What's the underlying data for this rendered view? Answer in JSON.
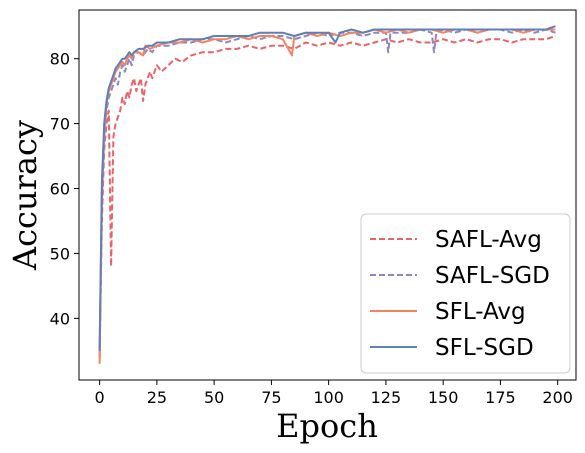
{
  "chart_data": {
    "type": "line",
    "xlabel": "Epoch",
    "ylabel": "Accuracy",
    "xlim": [
      -9,
      208
    ],
    "ylim": [
      30.5,
      87.5
    ],
    "x_ticks": [
      0,
      25,
      50,
      75,
      100,
      125,
      150,
      175,
      200
    ],
    "y_ticks": [
      40,
      50,
      60,
      70,
      80
    ],
    "grid": false,
    "legend_position": "lower-right",
    "series": [
      {
        "name": "SAFL-Avg",
        "color": "#e8636a",
        "style": "dashed",
        "points": [
          [
            0,
            34
          ],
          [
            1,
            55
          ],
          [
            2,
            66
          ],
          [
            3,
            70
          ],
          [
            4,
            72
          ],
          [
            5,
            48
          ],
          [
            6,
            68
          ],
          [
            7,
            70
          ],
          [
            8,
            71
          ],
          [
            9,
            72
          ],
          [
            10,
            74
          ],
          [
            11,
            73
          ],
          [
            12,
            75
          ],
          [
            13,
            74
          ],
          [
            14,
            76
          ],
          [
            15,
            77
          ],
          [
            16,
            75
          ],
          [
            17,
            76
          ],
          [
            18,
            77
          ],
          [
            19,
            73.5
          ],
          [
            20,
            76
          ],
          [
            21,
            77
          ],
          [
            22,
            78
          ],
          [
            23,
            77
          ],
          [
            24,
            78
          ],
          [
            25,
            79
          ],
          [
            27,
            78
          ],
          [
            30,
            79
          ],
          [
            33,
            80
          ],
          [
            36,
            79.5
          ],
          [
            40,
            80.5
          ],
          [
            45,
            81
          ],
          [
            50,
            81
          ],
          [
            55,
            81.5
          ],
          [
            60,
            81.5
          ],
          [
            65,
            82
          ],
          [
            70,
            81.5
          ],
          [
            75,
            82
          ],
          [
            80,
            82
          ],
          [
            85,
            81.5
          ],
          [
            90,
            82.5
          ],
          [
            95,
            82
          ],
          [
            100,
            82.5
          ],
          [
            105,
            82
          ],
          [
            110,
            82.5
          ],
          [
            115,
            82
          ],
          [
            120,
            82.5
          ],
          [
            125,
            83
          ],
          [
            130,
            82.5
          ],
          [
            135,
            83
          ],
          [
            140,
            82.5
          ],
          [
            145,
            82.5
          ],
          [
            150,
            83
          ],
          [
            155,
            82.5
          ],
          [
            160,
            83
          ],
          [
            165,
            82.5
          ],
          [
            170,
            83
          ],
          [
            175,
            83
          ],
          [
            180,
            82.5
          ],
          [
            185,
            83
          ],
          [
            190,
            83
          ],
          [
            195,
            83
          ],
          [
            199,
            83.5
          ]
        ]
      },
      {
        "name": "SAFL-SGD",
        "color": "#8b86c4",
        "style": "dashed",
        "points": [
          [
            0,
            35
          ],
          [
            1,
            58
          ],
          [
            2,
            68
          ],
          [
            3,
            72
          ],
          [
            4,
            74
          ],
          [
            5,
            75
          ],
          [
            6,
            76
          ],
          [
            7,
            77
          ],
          [
            8,
            76
          ],
          [
            9,
            78
          ],
          [
            10,
            79
          ],
          [
            11,
            78
          ],
          [
            12,
            79
          ],
          [
            13,
            80
          ],
          [
            14,
            79
          ],
          [
            15,
            80.5
          ],
          [
            17,
            81
          ],
          [
            19,
            80.5
          ],
          [
            21,
            81.5
          ],
          [
            23,
            81
          ],
          [
            25,
            82
          ],
          [
            30,
            82
          ],
          [
            35,
            82.5
          ],
          [
            40,
            82.5
          ],
          [
            45,
            83
          ],
          [
            50,
            83
          ],
          [
            55,
            82.5
          ],
          [
            60,
            83
          ],
          [
            65,
            83.5
          ],
          [
            70,
            83
          ],
          [
            75,
            83.5
          ],
          [
            80,
            83.5
          ],
          [
            85,
            83
          ],
          [
            90,
            83.5
          ],
          [
            95,
            84
          ],
          [
            100,
            83.5
          ],
          [
            105,
            84
          ],
          [
            110,
            84
          ],
          [
            115,
            83.5
          ],
          [
            120,
            84
          ],
          [
            125,
            84
          ],
          [
            126,
            81
          ],
          [
            127,
            84
          ],
          [
            130,
            84
          ],
          [
            135,
            84
          ],
          [
            140,
            84.5
          ],
          [
            145,
            84
          ],
          [
            146,
            81
          ],
          [
            147,
            84
          ],
          [
            150,
            84.5
          ],
          [
            155,
            84
          ],
          [
            160,
            84.5
          ],
          [
            165,
            84
          ],
          [
            170,
            84.5
          ],
          [
            175,
            84.5
          ],
          [
            180,
            84
          ],
          [
            185,
            84.5
          ],
          [
            190,
            84
          ],
          [
            195,
            84.5
          ],
          [
            199,
            84
          ]
        ]
      },
      {
        "name": "SFL-Avg",
        "color": "#f28460",
        "style": "solid",
        "points": [
          [
            0,
            33
          ],
          [
            1,
            60
          ],
          [
            2,
            69
          ],
          [
            3,
            73
          ],
          [
            4,
            75
          ],
          [
            5,
            76
          ],
          [
            6,
            77
          ],
          [
            7,
            78
          ],
          [
            8,
            78.5
          ],
          [
            9,
            79
          ],
          [
            10,
            79.5
          ],
          [
            11,
            79
          ],
          [
            12,
            80
          ],
          [
            13,
            80.5
          ],
          [
            14,
            80
          ],
          [
            15,
            81
          ],
          [
            17,
            81
          ],
          [
            19,
            80.5
          ],
          [
            20,
            82
          ],
          [
            22,
            81.5
          ],
          [
            25,
            82
          ],
          [
            30,
            82.5
          ],
          [
            35,
            82.5
          ],
          [
            40,
            83
          ],
          [
            45,
            82.5
          ],
          [
            50,
            83
          ],
          [
            55,
            83
          ],
          [
            60,
            83.5
          ],
          [
            65,
            83
          ],
          [
            70,
            83.5
          ],
          [
            75,
            83.5
          ],
          [
            80,
            83
          ],
          [
            84,
            80.5
          ],
          [
            85,
            83.5
          ],
          [
            90,
            84
          ],
          [
            95,
            83.5
          ],
          [
            100,
            84
          ],
          [
            105,
            83.5
          ],
          [
            110,
            84
          ],
          [
            115,
            84
          ],
          [
            120,
            84.5
          ],
          [
            125,
            84
          ],
          [
            130,
            84.5
          ],
          [
            135,
            84
          ],
          [
            140,
            84.5
          ],
          [
            145,
            84.5
          ],
          [
            150,
            84
          ],
          [
            155,
            84.5
          ],
          [
            160,
            84.5
          ],
          [
            165,
            84
          ],
          [
            170,
            84.5
          ],
          [
            175,
            84.5
          ],
          [
            180,
            84.5
          ],
          [
            185,
            84
          ],
          [
            190,
            84.5
          ],
          [
            195,
            84.5
          ],
          [
            199,
            84.5
          ]
        ]
      },
      {
        "name": "SFL-SGD",
        "color": "#5f7fb8",
        "style": "solid",
        "points": [
          [
            0,
            35
          ],
          [
            1,
            61
          ],
          [
            2,
            70
          ],
          [
            3,
            73.5
          ],
          [
            4,
            75.5
          ],
          [
            5,
            76.5
          ],
          [
            6,
            77.5
          ],
          [
            7,
            78.5
          ],
          [
            8,
            79
          ],
          [
            9,
            79.5
          ],
          [
            10,
            80
          ],
          [
            11,
            80
          ],
          [
            12,
            80.5
          ],
          [
            13,
            81
          ],
          [
            14,
            80.5
          ],
          [
            15,
            81
          ],
          [
            17,
            81.5
          ],
          [
            19,
            81.5
          ],
          [
            21,
            82
          ],
          [
            23,
            82
          ],
          [
            25,
            82.5
          ],
          [
            30,
            82.5
          ],
          [
            35,
            83
          ],
          [
            40,
            83
          ],
          [
            45,
            83
          ],
          [
            50,
            83.5
          ],
          [
            55,
            83.5
          ],
          [
            60,
            83.5
          ],
          [
            65,
            83.5
          ],
          [
            70,
            84
          ],
          [
            75,
            84
          ],
          [
            80,
            84
          ],
          [
            85,
            83.5
          ],
          [
            90,
            84
          ],
          [
            95,
            84
          ],
          [
            100,
            84
          ],
          [
            103,
            82.5
          ],
          [
            105,
            84
          ],
          [
            110,
            84.5
          ],
          [
            115,
            84
          ],
          [
            120,
            84.5
          ],
          [
            125,
            84.5
          ],
          [
            130,
            84.5
          ],
          [
            135,
            84.5
          ],
          [
            140,
            84.5
          ],
          [
            145,
            84.5
          ],
          [
            150,
            84.5
          ],
          [
            155,
            84.5
          ],
          [
            160,
            84.5
          ],
          [
            165,
            84.5
          ],
          [
            170,
            84.5
          ],
          [
            175,
            84.5
          ],
          [
            180,
            84.5
          ],
          [
            185,
            84.5
          ],
          [
            190,
            84.5
          ],
          [
            195,
            84.5
          ],
          [
            199,
            85
          ]
        ]
      }
    ]
  }
}
